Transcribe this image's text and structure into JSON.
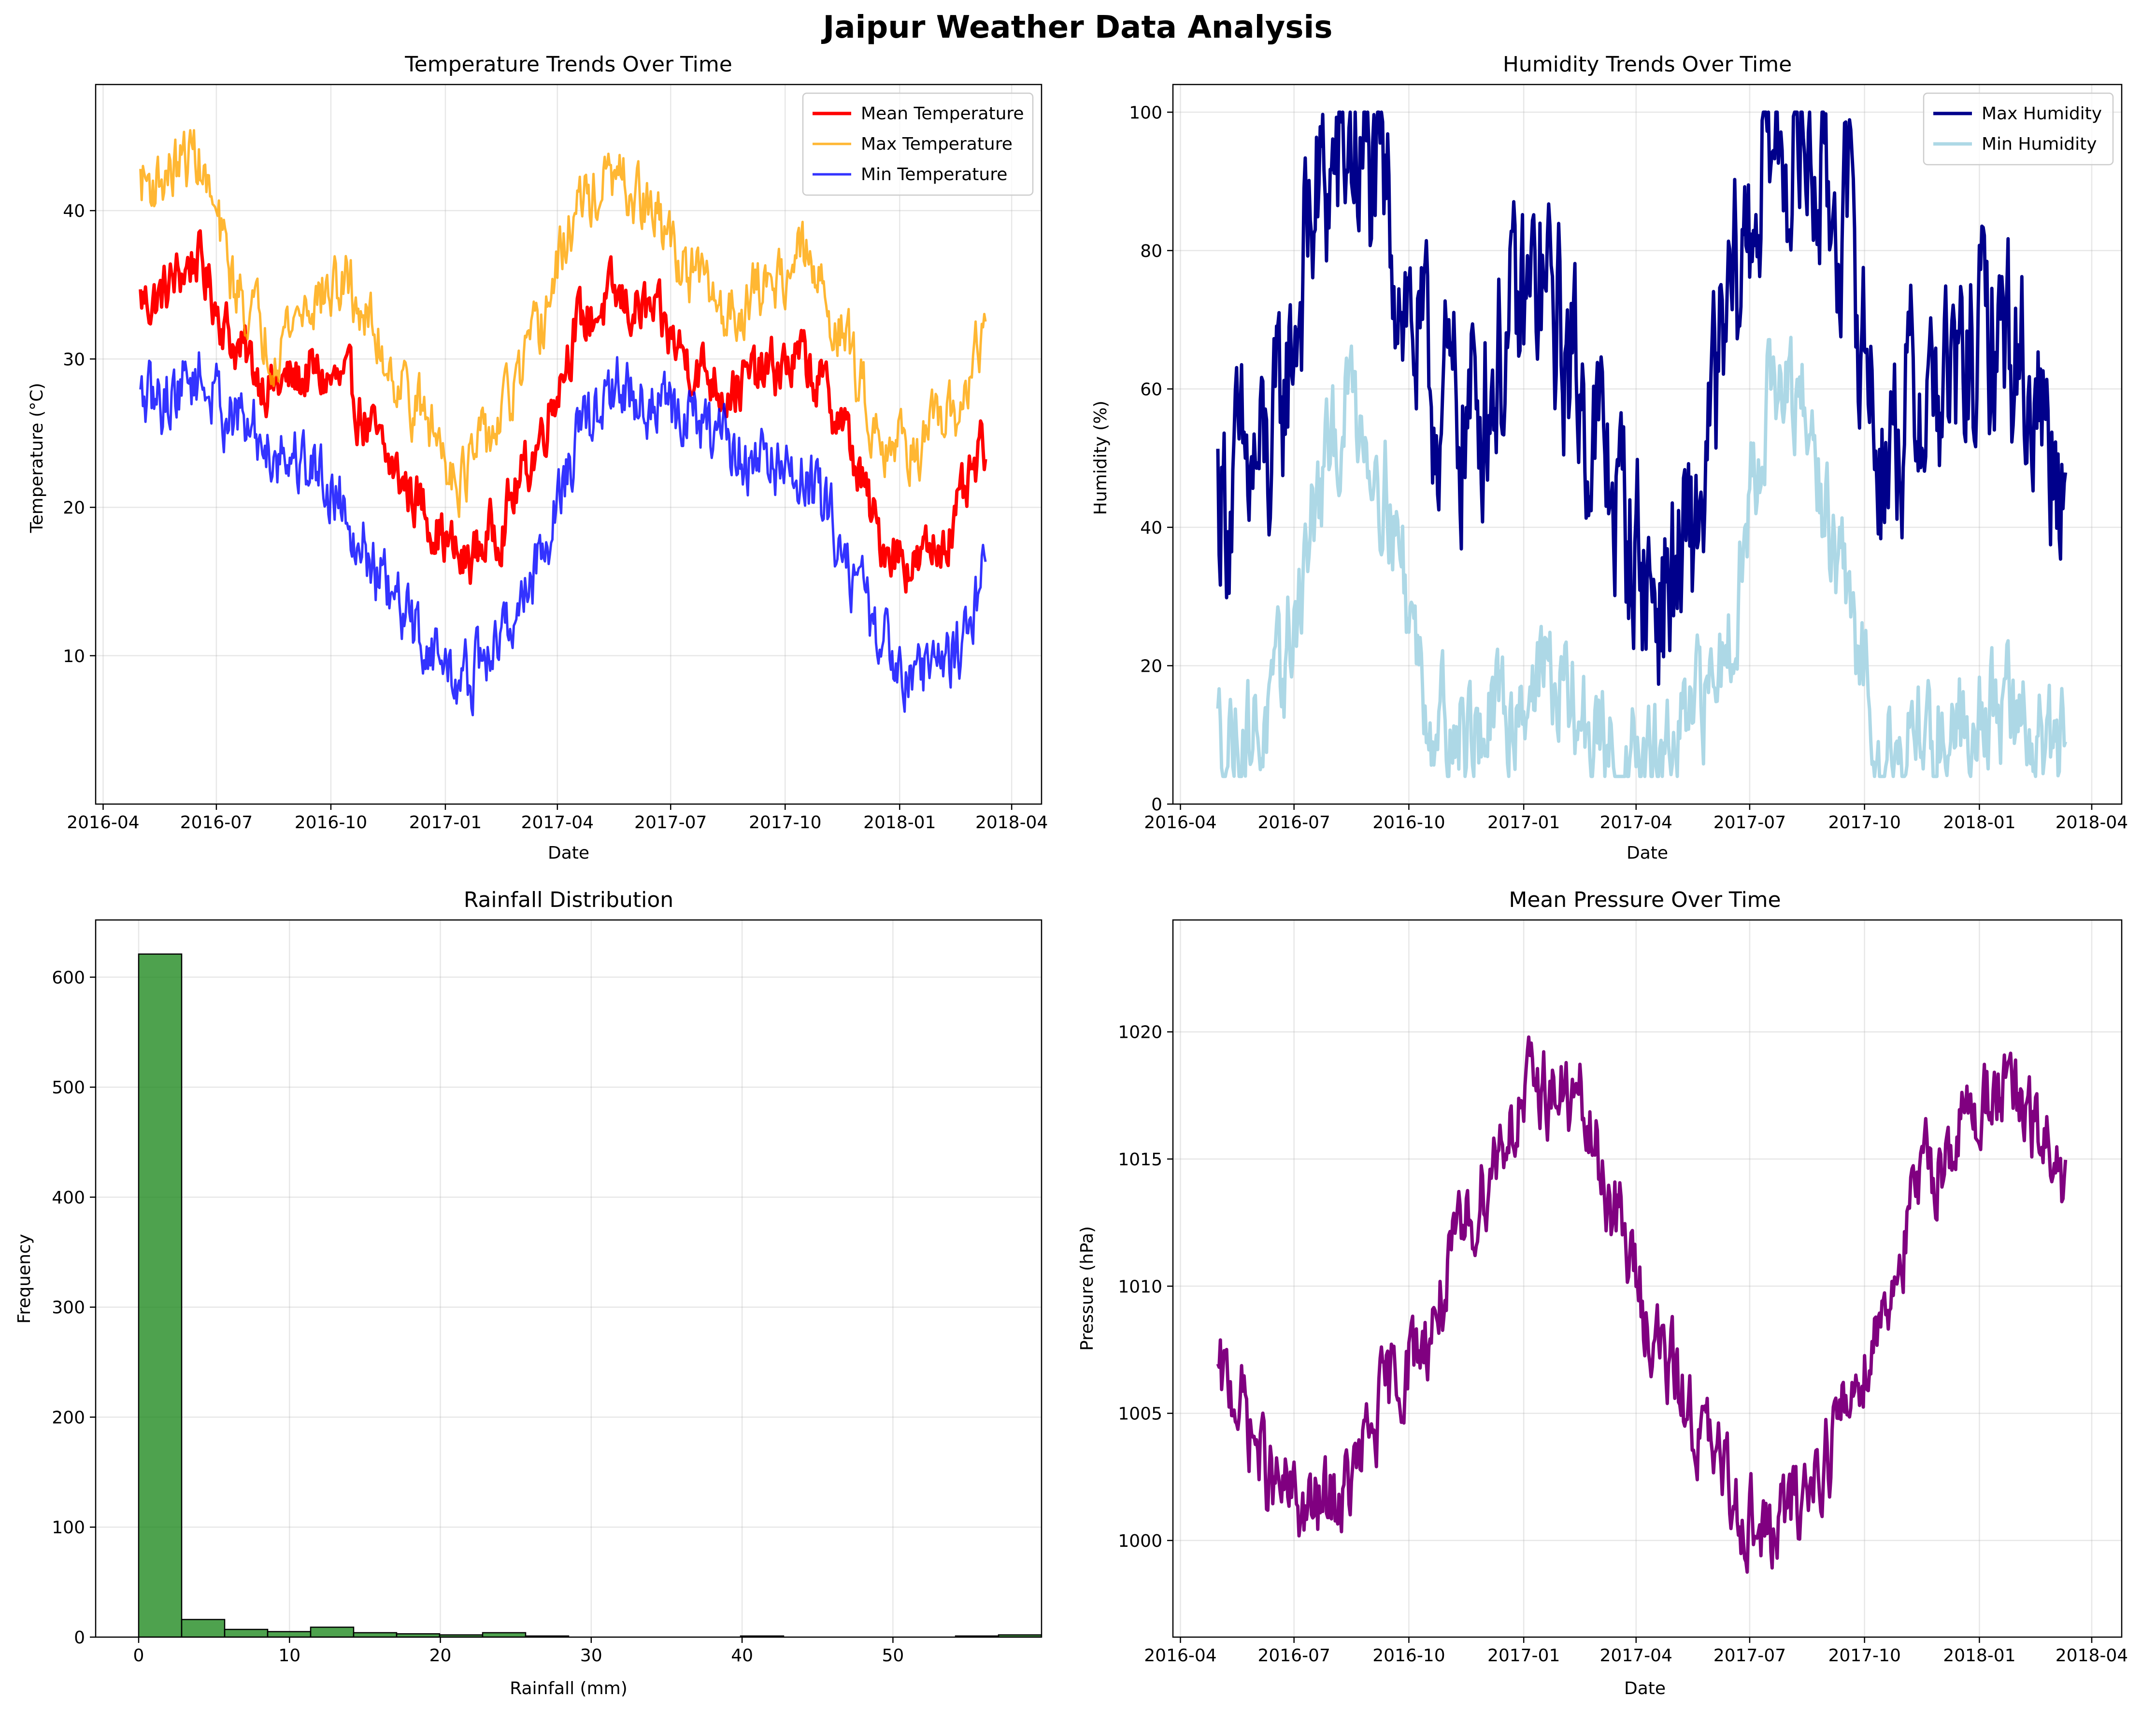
{
  "figure_title": "Jaipur Weather Data Analysis",
  "chart_data": [
    {
      "type": "line",
      "title": "Temperature Trends Over Time",
      "xlabel": "Date",
      "ylabel": "Temperature (°C)",
      "x_ticks": [
        "2016-04",
        "2016-07",
        "2016-10",
        "2017-01",
        "2017-04",
        "2017-07",
        "2017-10",
        "2018-01",
        "2018-04"
      ],
      "xlim": [
        "2016-03-26",
        "2018-04-25"
      ],
      "ylim": [
        0,
        48.5
      ],
      "y_ticks": [
        10,
        20,
        30,
        40
      ],
      "grid": true,
      "legend_position": "top-right",
      "series": [
        {
          "name": "Mean Temperature",
          "color": "#ff0000",
          "x": [
            "2016-05",
            "2016-06",
            "2016-07",
            "2016-08",
            "2016-09",
            "2016-10",
            "2016-11",
            "2016-12",
            "2017-01",
            "2017-02",
            "2017-03",
            "2017-04",
            "2017-05",
            "2017-06",
            "2017-07",
            "2017-08",
            "2017-09",
            "2017-10",
            "2017-11",
            "2017-12",
            "2018-01",
            "2018-02",
            "2018-03"
          ],
          "values": [
            34,
            37,
            31,
            28,
            29,
            28,
            23,
            20,
            16,
            19,
            24,
            32,
            34,
            33,
            30,
            28,
            29,
            30,
            26,
            18,
            16,
            19,
            25
          ]
        },
        {
          "name": "Max Temperature",
          "color": "#ffa500",
          "x": [
            "2016-05",
            "2016-06",
            "2016-07",
            "2016-08",
            "2016-09",
            "2016-10",
            "2016-11",
            "2016-12",
            "2017-01",
            "2017-02",
            "2017-03",
            "2017-04",
            "2017-05",
            "2017-06",
            "2017-07",
            "2017-08",
            "2017-09",
            "2017-10",
            "2017-11",
            "2017-12",
            "2018-01",
            "2018-02",
            "2018-03"
          ],
          "values": [
            42,
            44,
            35,
            31,
            34,
            35,
            30,
            26,
            22,
            26,
            31,
            40,
            42,
            40,
            36,
            33,
            35,
            37,
            32,
            25,
            24,
            26,
            33
          ]
        },
        {
          "name": "Min Temperature",
          "color": "#0000ff",
          "x": [
            "2016-05",
            "2016-06",
            "2016-07",
            "2016-08",
            "2016-09",
            "2016-10",
            "2016-11",
            "2016-12",
            "2017-01",
            "2017-02",
            "2017-03",
            "2017-04",
            "2017-05",
            "2017-06",
            "2017-07",
            "2017-08",
            "2017-09",
            "2017-10",
            "2017-11",
            "2017-12",
            "2018-01",
            "2018-02",
            "2018-03"
          ],
          "values": [
            27,
            29,
            26,
            24,
            23,
            20,
            14,
            11,
            8,
            11,
            16,
            24,
            28,
            27,
            26,
            24,
            23,
            22,
            18,
            11,
            9,
            10,
            17
          ]
        }
      ]
    },
    {
      "type": "line",
      "title": "Humidity Trends Over Time",
      "xlabel": "Date",
      "ylabel": "Humidity (%)",
      "x_ticks": [
        "2016-04",
        "2016-07",
        "2016-10",
        "2017-01",
        "2017-04",
        "2017-07",
        "2017-10",
        "2018-01",
        "2018-04"
      ],
      "xlim": [
        "2016-03-26",
        "2018-04-25"
      ],
      "ylim": [
        0,
        104
      ],
      "y_ticks": [
        0,
        20,
        40,
        60,
        80,
        100
      ],
      "grid": true,
      "legend_position": "top-right",
      "series": [
        {
          "name": "Max Humidity",
          "color": "#00008b",
          "x": [
            "2016-05",
            "2016-06",
            "2016-07",
            "2016-08",
            "2016-09",
            "2016-10",
            "2016-11",
            "2016-12",
            "2017-01",
            "2017-02",
            "2017-03",
            "2017-04",
            "2017-05",
            "2017-06",
            "2017-07",
            "2017-08",
            "2017-09",
            "2017-10",
            "2017-11",
            "2017-12",
            "2018-01",
            "2018-02",
            "2018-03"
          ],
          "values": [
            45,
            50,
            85,
            95,
            85,
            60,
            55,
            65,
            75,
            60,
            45,
            30,
            35,
            70,
            95,
            95,
            85,
            50,
            60,
            60,
            70,
            60,
            45
          ]
        },
        {
          "name": "Min Humidity",
          "color": "#add8e6",
          "x": [
            "2016-05",
            "2016-06",
            "2016-07",
            "2016-08",
            "2016-09",
            "2016-10",
            "2016-11",
            "2016-12",
            "2017-01",
            "2017-02",
            "2017-03",
            "2017-04",
            "2017-05",
            "2017-06",
            "2017-07",
            "2017-08",
            "2017-09",
            "2017-10",
            "2017-11",
            "2017-12",
            "2018-01",
            "2018-02",
            "2018-03"
          ],
          "values": [
            10,
            12,
            40,
            60,
            45,
            15,
            10,
            12,
            20,
            12,
            6,
            5,
            10,
            25,
            60,
            55,
            30,
            8,
            10,
            12,
            15,
            10,
            8
          ]
        }
      ]
    },
    {
      "type": "bar",
      "title": "Rainfall Distribution",
      "xlabel": "Rainfall (mm)",
      "ylabel": "Frequency",
      "xlim": [
        -2.85,
        59.85
      ],
      "ylim": [
        0,
        652
      ],
      "x_ticks": [
        0,
        10,
        20,
        30,
        40,
        50
      ],
      "y_ticks": [
        0,
        100,
        200,
        300,
        400,
        500,
        600
      ],
      "grid": true,
      "color": "#228b22",
      "bin_width": 2.85,
      "bin_edges_start": 0,
      "values": [
        621,
        16,
        7,
        5,
        9,
        4,
        3,
        2,
        4,
        1,
        0,
        0,
        0,
        0,
        1,
        0,
        0,
        0,
        0,
        1,
        2,
        0,
        0,
        0,
        0,
        1,
        0,
        0,
        0,
        0
      ]
    },
    {
      "type": "line",
      "title": "Mean Pressure Over Time",
      "xlabel": "Date",
      "ylabel": "Pressure (hPa)",
      "x_ticks": [
        "2016-04",
        "2016-07",
        "2016-10",
        "2017-01",
        "2017-04",
        "2017-07",
        "2017-10",
        "2018-01",
        "2018-04"
      ],
      "xlim": [
        "2016-03-26",
        "2018-04-25"
      ],
      "ylim": [
        996.2,
        1024.4
      ],
      "y_ticks": [
        1000,
        1005,
        1010,
        1015,
        1020
      ],
      "grid": true,
      "series": [
        {
          "name": "Mean Pressure",
          "color": "#800080",
          "x": [
            "2016-05",
            "2016-06",
            "2016-07",
            "2016-08",
            "2016-09",
            "2016-10",
            "2016-11",
            "2016-12",
            "2017-01",
            "2017-02",
            "2017-03",
            "2017-04",
            "2017-05",
            "2017-06",
            "2017-07",
            "2017-08",
            "2017-09",
            "2017-10",
            "2017-11",
            "2017-12",
            "2018-01",
            "2018-02",
            "2018-03"
          ],
          "values": [
            1006,
            1002,
            1001,
            1002,
            1006,
            1008,
            1012,
            1016,
            1018,
            1017,
            1013,
            1008,
            1005,
            1002,
            1000,
            1002,
            1005,
            1009,
            1014,
            1016,
            1018,
            1016,
            1014
          ]
        }
      ]
    }
  ]
}
